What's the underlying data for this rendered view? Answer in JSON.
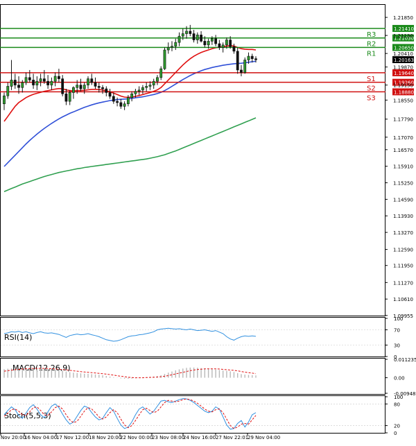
{
  "chart_data": [
    {
      "type": "candlestick",
      "instrument_note": "",
      "y_ticks": [
        "1.21850",
        "1.21130",
        "1.20410",
        "1.19870",
        "1.19150",
        "1.18550",
        "1.17790",
        "1.17070",
        "1.16570",
        "1.15910",
        "1.15250",
        "1.14590",
        "1.13930",
        "1.13270",
        "1.12590",
        "1.11950",
        "1.11270",
        "1.10610",
        "1.09955"
      ],
      "ylim": [
        1.0995,
        1.2235
      ],
      "x_ticks": [
        "Nov 20:00",
        "16 Nov 04:00",
        "17 Nov 12:00",
        "18 Nov 20:00",
        "22 Nov 00:00",
        "23 Nov 08:00",
        "24 Nov 16:00",
        "27 Nov 22:01",
        "29 Nov 04:00"
      ],
      "candles": [
        [
          1.184,
          1.1885,
          1.1815,
          1.1872
        ],
        [
          1.1872,
          1.1925,
          1.186,
          1.191
        ],
        [
          1.191,
          1.2015,
          1.1895,
          1.1935
        ],
        [
          1.1935,
          1.196,
          1.19,
          1.1915
        ],
        [
          1.1915,
          1.195,
          1.188,
          1.1905
        ],
        [
          1.1905,
          1.1935,
          1.1885,
          1.1925
        ],
        [
          1.1925,
          1.1965,
          1.1915,
          1.1945
        ],
        [
          1.1945,
          1.1975,
          1.1925,
          1.1935
        ],
        [
          1.1935,
          1.196,
          1.19,
          1.1915
        ],
        [
          1.1915,
          1.195,
          1.1895,
          1.193
        ],
        [
          1.193,
          1.196,
          1.191,
          1.194
        ],
        [
          1.194,
          1.1975,
          1.192,
          1.193
        ],
        [
          1.193,
          1.1955,
          1.19,
          1.1915
        ],
        [
          1.1915,
          1.1945,
          1.1895,
          1.193
        ],
        [
          1.193,
          1.1965,
          1.191,
          1.195
        ],
        [
          1.195,
          1.198,
          1.1925,
          1.194
        ],
        [
          1.194,
          1.1955,
          1.187,
          1.188
        ],
        [
          1.188,
          1.19,
          1.1835,
          1.185
        ],
        [
          1.185,
          1.1895,
          1.1835,
          1.1885
        ],
        [
          1.1885,
          1.191,
          1.186,
          1.1905
        ],
        [
          1.1905,
          1.1935,
          1.188,
          1.1915
        ],
        [
          1.1915,
          1.194,
          1.189,
          1.19
        ],
        [
          1.19,
          1.1925,
          1.188,
          1.1915
        ],
        [
          1.1915,
          1.195,
          1.19,
          1.194
        ],
        [
          1.194,
          1.196,
          1.1915,
          1.1925
        ],
        [
          1.1925,
          1.1945,
          1.19,
          1.191
        ],
        [
          1.191,
          1.1925,
          1.1885,
          1.1905
        ],
        [
          1.1905,
          1.1915,
          1.188,
          1.19
        ],
        [
          1.19,
          1.191,
          1.187,
          1.1885
        ],
        [
          1.1885,
          1.19,
          1.186,
          1.187
        ],
        [
          1.187,
          1.1885,
          1.184,
          1.185
        ],
        [
          1.185,
          1.1865,
          1.183,
          1.1845
        ],
        [
          1.1845,
          1.186,
          1.182,
          1.183
        ],
        [
          1.183,
          1.185,
          1.1815,
          1.184
        ],
        [
          1.184,
          1.1875,
          1.183,
          1.1865
        ],
        [
          1.1865,
          1.189,
          1.185,
          1.188
        ],
        [
          1.188,
          1.19,
          1.1865,
          1.189
        ],
        [
          1.189,
          1.191,
          1.1875,
          1.1895
        ],
        [
          1.1895,
          1.1915,
          1.188,
          1.1905
        ],
        [
          1.1905,
          1.1925,
          1.189,
          1.191
        ],
        [
          1.191,
          1.193,
          1.1895,
          1.1915
        ],
        [
          1.1915,
          1.194,
          1.19,
          1.193
        ],
        [
          1.193,
          1.1955,
          1.1915,
          1.1945
        ],
        [
          1.1945,
          1.199,
          1.1935,
          1.198
        ],
        [
          1.198,
          1.2065,
          1.1975,
          1.2055
        ],
        [
          1.2055,
          1.2085,
          1.204,
          1.2065
        ],
        [
          1.2065,
          1.209,
          1.205,
          1.207
        ],
        [
          1.207,
          1.21,
          1.2055,
          1.2085
        ],
        [
          1.2085,
          1.2125,
          1.207,
          1.211
        ],
        [
          1.211,
          1.214,
          1.2095,
          1.212
        ],
        [
          1.212,
          1.215,
          1.21,
          1.213
        ],
        [
          1.213,
          1.2155,
          1.211,
          1.212
        ],
        [
          1.212,
          1.2135,
          1.2085,
          1.2095
        ],
        [
          1.2095,
          1.2125,
          1.208,
          1.2115
        ],
        [
          1.2115,
          1.213,
          1.2085,
          1.209
        ],
        [
          1.209,
          1.211,
          1.2065,
          1.2075
        ],
        [
          1.2075,
          1.21,
          1.206,
          1.209
        ],
        [
          1.209,
          1.211,
          1.2075,
          1.21
        ],
        [
          1.21,
          1.2115,
          1.207,
          1.208
        ],
        [
          1.208,
          1.2095,
          1.2055,
          1.2065
        ],
        [
          1.2065,
          1.2085,
          1.2045,
          1.2075
        ],
        [
          1.2075,
          1.2105,
          1.206,
          1.2095
        ],
        [
          1.2095,
          1.211,
          1.206,
          1.2068
        ],
        [
          1.2068,
          1.208,
          1.204,
          1.205
        ],
        [
          1.205,
          1.2065,
          1.196,
          1.1975
        ],
        [
          1.1975,
          1.1995,
          1.195,
          1.1965
        ],
        [
          1.1965,
          1.2025,
          1.196,
          1.2015
        ],
        [
          1.2015,
          1.2045,
          1.2,
          1.203
        ],
        [
          1.203,
          1.204,
          1.2005,
          1.202
        ],
        [
          1.202,
          1.203,
          1.2005,
          1.2016
        ]
      ],
      "lines": [
        {
          "name": "",
          "color": "#e01010",
          "values": [
            1.177,
            1.179,
            1.181,
            1.183,
            1.1845,
            1.1855,
            1.1865,
            1.1872,
            1.1878,
            1.1882,
            1.1886,
            1.189,
            1.1893,
            1.1896,
            1.1899,
            1.1901,
            1.19,
            1.1896,
            1.1893,
            1.1892,
            1.1893,
            1.1893,
            1.1894,
            1.1896,
            1.1898,
            1.1898,
            1.1897,
            1.1895,
            1.1892,
            1.1888,
            1.1883,
            1.1877,
            1.1871,
            1.1867,
            1.1866,
            1.1867,
            1.187,
            1.1873,
            1.1877,
            1.1881,
            1.1885,
            1.189,
            1.1896,
            1.1905,
            1.192,
            1.1935,
            1.195,
            1.1965,
            1.198,
            1.1995,
            1.2008,
            1.202,
            1.203,
            1.2038,
            1.2045,
            1.205,
            1.2055,
            1.206,
            1.2064,
            1.2066,
            1.2068,
            1.2071,
            1.2072,
            1.2071,
            1.2065,
            1.206,
            1.2058,
            1.2057,
            1.2057,
            1.2055
          ]
        },
        {
          "name": "",
          "color": "#3050d8",
          "values": [
            1.159,
            1.1605,
            1.162,
            1.1635,
            1.165,
            1.1665,
            1.168,
            1.1694,
            1.1707,
            1.1719,
            1.1731,
            1.1742,
            1.1752,
            1.1762,
            1.1771,
            1.178,
            1.1788,
            1.1795,
            1.1802,
            1.1808,
            1.1814,
            1.182,
            1.1826,
            1.1831,
            1.1836,
            1.184,
            1.1844,
            1.1847,
            1.185,
            1.1853,
            1.1855,
            1.1857,
            1.1858,
            1.1859,
            1.186,
            1.1862,
            1.1864,
            1.1866,
            1.1868,
            1.1871,
            1.1874,
            1.1877,
            1.1881,
            1.1886,
            1.1893,
            1.1901,
            1.191,
            1.1919,
            1.1928,
            1.1937,
            1.1945,
            1.1953,
            1.196,
            1.1966,
            1.1972,
            1.1977,
            1.1981,
            1.1985,
            1.1988,
            1.1991,
            1.1994,
            1.1996,
            1.1998,
            1.2,
            1.2001,
            1.2002,
            1.2004,
            1.2006,
            1.2008,
            1.201
          ]
        },
        {
          "name": "",
          "color": "#30a050",
          "values": [
            1.149,
            1.1496,
            1.1502,
            1.1508,
            1.1514,
            1.152,
            1.1525,
            1.153,
            1.1535,
            1.154,
            1.1545,
            1.155,
            1.1554,
            1.1558,
            1.1562,
            1.1566,
            1.1569,
            1.1572,
            1.1575,
            1.1578,
            1.1581,
            1.1583,
            1.1586,
            1.1588,
            1.159,
            1.1592,
            1.1594,
            1.1596,
            1.1598,
            1.16,
            1.1602,
            1.1604,
            1.1606,
            1.1608,
            1.161,
            1.1612,
            1.1614,
            1.1616,
            1.1618,
            1.162,
            1.1623,
            1.1626,
            1.1629,
            1.1633,
            1.1637,
            1.1642,
            1.1647,
            1.1652,
            1.1658,
            1.1664,
            1.167,
            1.1676,
            1.1682,
            1.1688,
            1.1694,
            1.17,
            1.1706,
            1.1712,
            1.1718,
            1.1724,
            1.173,
            1.1736,
            1.1742,
            1.1748,
            1.1754,
            1.176,
            1.1766,
            1.1772,
            1.1778,
            1.1784
          ]
        }
      ],
      "levels": [
        {
          "label": "R3",
          "value": 1.2141,
          "price": "1.21410",
          "color": "#1a8a1a"
        },
        {
          "label": "R2",
          "value": 1.2103,
          "price": "1.21030",
          "color": "#1a8a1a"
        },
        {
          "label": "R1",
          "value": 1.2065,
          "price": "1.20650",
          "color": "#1a8a1a"
        },
        {
          "label": "S1",
          "value": 1.1964,
          "price": "1.19640",
          "color": "#d01010"
        },
        {
          "label": "S2",
          "value": 1.1926,
          "price": "1.19260",
          "color": "#d01010"
        },
        {
          "label": "S3",
          "value": 1.1888,
          "price": "1.18880",
          "color": "#d01010"
        }
      ],
      "current_price": {
        "value": 1.20163,
        "label": "1.20163"
      }
    },
    {
      "type": "line",
      "title": "RSI(14)",
      "y_ticks": [
        "100",
        "70",
        "30",
        "0"
      ],
      "ylim": [
        0,
        100
      ],
      "series": [
        {
          "name": "RSI(14)",
          "color": "#3090e0",
          "values": [
            60,
            62,
            65,
            64,
            66,
            63,
            65,
            62,
            60,
            63,
            65,
            62,
            61,
            62,
            60,
            58,
            54,
            50,
            55,
            57,
            59,
            57,
            58,
            60,
            57,
            55,
            52,
            48,
            44,
            42,
            40,
            41,
            44,
            48,
            52,
            54,
            55,
            57,
            58,
            60,
            62,
            65,
            70,
            72,
            73,
            74,
            73,
            72,
            73,
            71,
            70,
            72,
            70,
            68,
            69,
            70,
            68,
            66,
            68,
            64,
            60,
            52,
            46,
            43,
            48,
            52,
            54,
            53,
            54,
            53
          ]
        }
      ]
    },
    {
      "type": "bar",
      "title": "MACD(12,26,9)",
      "y_ticks": [
        "0.011235",
        "0.00",
        "-0.009486"
      ],
      "ylim": [
        -0.009486,
        0.011235
      ],
      "series": [
        {
          "name": "MACD(12,26,9)",
          "color": "#b8b8b8",
          "values": [
            0.0052,
            0.0055,
            0.0057,
            0.0058,
            0.0059,
            0.006,
            0.006,
            0.0059,
            0.0058,
            0.0057,
            0.0056,
            0.0055,
            0.0053,
            0.0051,
            0.0049,
            0.0047,
            0.0043,
            0.0038,
            0.0034,
            0.0031,
            0.0029,
            0.0027,
            0.0025,
            0.0024,
            0.0022,
            0.002,
            0.0018,
            0.0015,
            0.0011,
            0.0007,
            0.0003,
            -0.0001,
            -0.0004,
            -0.0006,
            -0.0006,
            -0.0005,
            -0.0003,
            -0.0001,
            0.0001,
            0.0003,
            0.0005,
            0.0007,
            0.001,
            0.0015,
            0.0023,
            0.0031,
            0.0038,
            0.0045,
            0.0051,
            0.0056,
            0.006,
            0.0062,
            0.0062,
            0.0061,
            0.0059,
            0.0057,
            0.0055,
            0.0053,
            0.005,
            0.0047,
            0.0044,
            0.0042,
            0.0039,
            0.0035,
            0.0028,
            0.0022,
            0.0019,
            0.0017,
            0.0016,
            0.0014
          ]
        },
        {
          "name": "",
          "color": "#e01010",
          "values": [
            0.004,
            0.0043,
            0.0046,
            0.0049,
            0.0051,
            0.0053,
            0.0055,
            0.0056,
            0.0057,
            0.0057,
            0.0057,
            0.0057,
            0.0056,
            0.0055,
            0.0054,
            0.0052,
            0.005,
            0.0048,
            0.0045,
            0.0042,
            0.004,
            0.0037,
            0.0035,
            0.0033,
            0.0031,
            0.0029,
            0.0027,
            0.0025,
            0.0022,
            0.0019,
            0.0016,
            0.0012,
            0.0009,
            0.0006,
            0.0003,
            0.0001,
            0.0,
            0.0,
            0.0,
            0.0001,
            0.0002,
            0.0003,
            0.0004,
            0.0006,
            0.0009,
            0.0013,
            0.0018,
            0.0023,
            0.0028,
            0.0033,
            0.0038,
            0.0043,
            0.0047,
            0.005,
            0.0052,
            0.0054,
            0.0054,
            0.0054,
            0.0054,
            0.0053,
            0.0051,
            0.0049,
            0.0047,
            0.0045,
            0.0042,
            0.0038,
            0.0034,
            0.0031,
            0.0028,
            0.0025
          ]
        }
      ]
    },
    {
      "type": "line",
      "title": "Stoch(5,5,3)",
      "y_ticks": [
        "100",
        "80",
        "20",
        "0"
      ],
      "ylim": [
        0,
        100
      ],
      "series": [
        {
          "name": "",
          "color": "#3090e0",
          "values": [
            50,
            62,
            72,
            64,
            48,
            40,
            55,
            70,
            78,
            66,
            50,
            42,
            58,
            74,
            80,
            70,
            52,
            36,
            24,
            30,
            46,
            62,
            74,
            70,
            56,
            44,
            36,
            40,
            56,
            70,
            60,
            40,
            22,
            12,
            16,
            30,
            50,
            66,
            72,
            62,
            52,
            60,
            74,
            88,
            90,
            86,
            84,
            88,
            92,
            95,
            94,
            90,
            84,
            76,
            68,
            60,
            56,
            60,
            72,
            66,
            44,
            22,
            10,
            12,
            26,
            34,
            16,
            30,
            50,
            56
          ]
        },
        {
          "name": "",
          "color": "#e01010",
          "values": [
            46,
            54,
            64,
            66,
            60,
            50,
            48,
            58,
            70,
            72,
            62,
            50,
            48,
            58,
            70,
            74,
            66,
            50,
            36,
            28,
            32,
            46,
            60,
            70,
            66,
            56,
            44,
            38,
            44,
            56,
            64,
            56,
            38,
            22,
            14,
            20,
            34,
            50,
            64,
            68,
            62,
            56,
            60,
            72,
            84,
            90,
            88,
            86,
            88,
            92,
            94,
            92,
            88,
            82,
            74,
            66,
            60,
            58,
            64,
            66,
            56,
            38,
            20,
            12,
            16,
            24,
            26,
            24,
            36,
            48
          ]
        }
      ]
    }
  ]
}
